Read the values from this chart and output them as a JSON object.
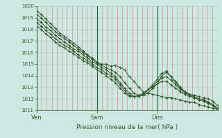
{
  "title": "Pression niveau de la mer( hPa )",
  "bg_color": "#cce8e0",
  "plot_bg_color": "#cce8e0",
  "line_color": "#2d5a2d",
  "grid_h_color": "#aad4cc",
  "grid_v_color": "#dd8888",
  "ylim": [
    1011,
    1020
  ],
  "yticks": [
    1011,
    1012,
    1013,
    1014,
    1015,
    1016,
    1017,
    1018,
    1019,
    1020
  ],
  "day_labels": [
    "Ven",
    "Sam",
    "Dim"
  ],
  "n_days": 3,
  "lines": [
    [
      1019.6,
      1019.3,
      1018.9,
      1018.5,
      1018.1,
      1017.7,
      1017.4,
      1017.1,
      1016.8,
      1016.5,
      1016.1,
      1015.8,
      1015.5,
      1015.2,
      1015.0,
      1015.0,
      1014.8,
      1014.9,
      1014.7,
      1014.5,
      1013.9,
      1013.5,
      1013.0,
      1012.6,
      1012.5,
      1012.4,
      1012.3,
      1012.2,
      1012.1,
      1012.1,
      1012.0,
      1011.9,
      1011.8,
      1011.7,
      1011.7,
      1011.5,
      1011.4,
      1011.3,
      1011.2,
      1011.1
    ],
    [
      1019.3,
      1019.0,
      1018.6,
      1018.2,
      1017.8,
      1017.5,
      1017.2,
      1016.9,
      1016.6,
      1016.3,
      1016.0,
      1015.7,
      1015.4,
      1015.1,
      1014.9,
      1014.7,
      1014.5,
      1014.3,
      1013.9,
      1013.4,
      1012.9,
      1012.5,
      1012.3,
      1012.3,
      1012.5,
      1012.9,
      1013.3,
      1014.0,
      1014.3,
      1013.9,
      1013.5,
      1013.0,
      1012.6,
      1012.4,
      1012.3,
      1012.2,
      1012.1,
      1012.0,
      1011.8,
      1011.4
    ],
    [
      1018.9,
      1018.6,
      1018.2,
      1017.9,
      1017.5,
      1017.2,
      1016.9,
      1016.6,
      1016.3,
      1016.1,
      1015.8,
      1015.5,
      1015.2,
      1015.0,
      1014.7,
      1014.5,
      1014.2,
      1013.9,
      1013.4,
      1012.9,
      1012.5,
      1012.2,
      1012.2,
      1012.4,
      1012.8,
      1013.2,
      1013.7,
      1014.2,
      1014.4,
      1013.9,
      1013.4,
      1012.9,
      1012.6,
      1012.4,
      1012.2,
      1012.0,
      1011.9,
      1011.7,
      1011.5,
      1011.2
    ],
    [
      1018.6,
      1018.3,
      1017.9,
      1017.6,
      1017.2,
      1016.9,
      1016.6,
      1016.4,
      1016.1,
      1015.8,
      1015.5,
      1015.3,
      1015.0,
      1014.7,
      1014.5,
      1014.2,
      1014.0,
      1013.7,
      1013.2,
      1012.7,
      1012.3,
      1012.2,
      1012.2,
      1012.4,
      1012.8,
      1013.1,
      1013.5,
      1013.8,
      1013.9,
      1013.6,
      1013.2,
      1012.8,
      1012.5,
      1012.3,
      1012.1,
      1012.0,
      1011.9,
      1011.7,
      1011.5,
      1011.1
    ],
    [
      1018.3,
      1018.0,
      1017.6,
      1017.3,
      1016.9,
      1016.6,
      1016.4,
      1016.1,
      1015.9,
      1015.6,
      1015.3,
      1015.1,
      1014.8,
      1014.5,
      1014.3,
      1014.0,
      1013.7,
      1013.4,
      1012.9,
      1012.5,
      1012.2,
      1012.2,
      1012.3,
      1012.5,
      1012.8,
      1013.0,
      1013.3,
      1013.5,
      1013.5,
      1013.2,
      1012.9,
      1012.6,
      1012.4,
      1012.2,
      1012.1,
      1011.9,
      1011.8,
      1011.6,
      1011.4,
      1011.1
    ]
  ]
}
